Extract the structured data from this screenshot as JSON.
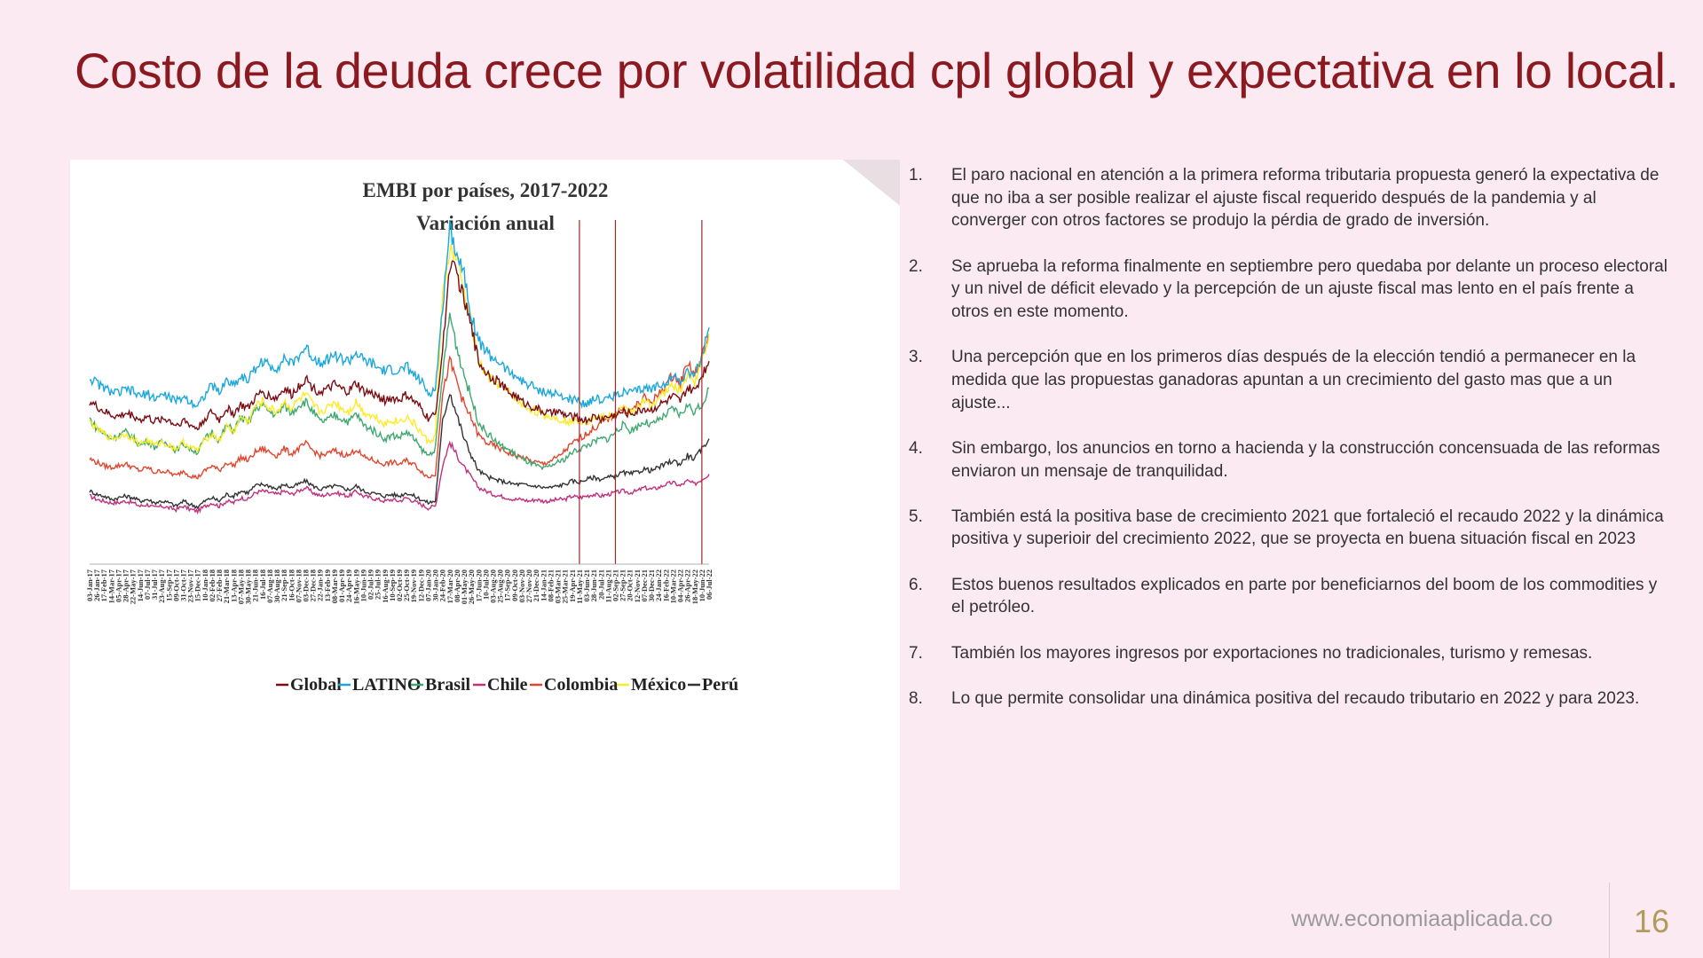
{
  "slide": {
    "title": "Costo de la deuda crece por volatilidad cpl global y expectativa en lo local.",
    "footer_url": "www.economiaaplicada.co",
    "page_number": "16"
  },
  "bullets": [
    {
      "num": "1.",
      "text": "El paro nacional en atención a la primera reforma tributaria propuesta generó la expectativa de que no iba a ser posible realizar el ajuste fiscal requerido después de la pandemia y al converger con otros factores se produjo la pérdia de grado de inversión."
    },
    {
      "num": "2.",
      "text": "Se aprueba la reforma finalmente en septiembre pero quedaba por delante un proceso electoral y un nivel de déficit elevado y la percepción de un ajuste fiscal mas lento en el país frente a otros en este momento."
    },
    {
      "num": "3.",
      "text": "Una percepción que en los primeros días después de la elección tendió a permanecer en la medida que las propuestas ganadoras apuntan a un crecimiento del gasto mas que a un ajuste..."
    },
    {
      "num": "4.",
      "text": "Sin embargo, los anuncios en torno a hacienda y la construcción concensuada  de las reformas enviaron un mensaje de tranquilidad."
    },
    {
      "num": "5.",
      "text": "También  está la positiva base de crecimiento 2021 que fortaleció el recaudo 2022 y la dinámica positiva y superioir del crecimiento 2022, que se proyecta en buena situación fiscal en 2023"
    },
    {
      "num": "6.",
      "text": "Estos buenos resultados explicados en parte por beneficiarnos del boom de los commodities y el petróleo."
    },
    {
      "num": "7.",
      "text": "También los mayores ingresos por exportaciones no tradicionales, turismo y remesas."
    },
    {
      "num": "8.",
      "text": "Lo que permite consolidar una dinámica positiva del recaudo tributario en 2022 y para 2023."
    }
  ],
  "chart_data": {
    "type": "line",
    "title": "EMBI por países, 2017-2022",
    "subtitle": "Variación anual",
    "x": [
      "03-Jan-17",
      "26-Jan-17",
      "17-Feb-17",
      "14-Mar-17",
      "05-Apr-17",
      "28-Apr-17",
      "22-May-17",
      "14-Jun-17",
      "07-Jul-17",
      "31-Jul-17",
      "23-Aug-17",
      "15-Sep-17",
      "09-Oct-17",
      "31-Oct-17",
      "23-Nov-17",
      "15-Dec-17",
      "10-Jan-18",
      "02-Feb-18",
      "27-Feb-18",
      "21-Mar-18",
      "13-Apr-18",
      "07-May-18",
      "30-May-18",
      "21-Jun-18",
      "16-Jul-18",
      "07-Aug-18",
      "30-Aug-18",
      "21-Sep-18",
      "16-Oct-18",
      "07-Nov-18",
      "03-Dec-18",
      "27-Dec-18",
      "22-Jan-19",
      "13-Feb-19",
      "08-Mar-19",
      "01-Apr-19",
      "24-Apr-19",
      "16-May-19",
      "10-Jun-19",
      "02-Jul-19",
      "25-Jul-19",
      "16-Aug-19",
      "10-Sep-19",
      "02-Oct-19",
      "25-Oct-19",
      "19-Nov-19",
      "12-Dec-19",
      "07-Jan-20",
      "30-Jan-20",
      "24-Feb-20",
      "17-Mar-20",
      "08-Apr-20",
      "01-May-20",
      "26-May-20",
      "17-Jun-20",
      "10-Jul-20",
      "03-Aug-20",
      "25-Aug-20",
      "17-Sep-20",
      "09-Oct-20",
      "03-Nov-20",
      "27-Nov-20",
      "21-Dec-20",
      "14-Jan-21",
      "08-Feb-21",
      "03-Mar-21",
      "25-Mar-21",
      "19-Apr-21",
      "11-May-21",
      "03-Jun-21",
      "28-Jun-21",
      "20-Jul-21",
      "11-Aug-21",
      "02-Sep-21",
      "27-Sep-21",
      "20-Oct-21",
      "12-Nov-21",
      "07-Dec-21",
      "30-Dec-21",
      "24-Jan-22",
      "16-Feb-22",
      "10-Mar-22",
      "04-Apr-22",
      "26-Apr-22",
      "18-May-22",
      "10-Jun-22",
      "06-Jul-22"
    ],
    "series": [
      {
        "name": "Global",
        "color": "#7a0c12",
        "values": [
          440,
          425,
          410,
          400,
          395,
          405,
          400,
          385,
          395,
          380,
          390,
          385,
          370,
          385,
          370,
          360,
          390,
          410,
          385,
          420,
          405,
          430,
          420,
          450,
          470,
          455,
          450,
          480,
          460,
          485,
          510,
          480,
          470,
          475,
          490,
          475,
          470,
          495,
          470,
          465,
          455,
          445,
          450,
          445,
          460,
          440,
          420,
          390,
          400,
          590,
          850,
          820,
          740,
          660,
          560,
          530,
          510,
          495,
          470,
          460,
          440,
          430,
          420,
          410,
          405,
          410,
          400,
          395,
          390,
          385,
          395,
          390,
          395,
          400,
          410,
          405,
          410,
          420,
          415,
          430,
          440,
          455,
          440,
          480,
          470,
          520,
          560
        ]
      },
      {
        "name": "LATINO",
        "color": "#19a7dc",
        "values": [
          510,
          495,
          480,
          470,
          465,
          475,
          470,
          455,
          465,
          450,
          460,
          455,
          440,
          455,
          440,
          430,
          460,
          490,
          465,
          505,
          490,
          515,
          505,
          540,
          560,
          545,
          540,
          570,
          550,
          575,
          600,
          570,
          560,
          565,
          580,
          565,
          560,
          585,
          560,
          555,
          540,
          530,
          535,
          530,
          545,
          520,
          500,
          465,
          475,
          720,
          960,
          880,
          820,
          700,
          620,
          590,
          570,
          555,
          530,
          520,
          500,
          490,
          480,
          470,
          465,
          460,
          450,
          445,
          440,
          435,
          450,
          445,
          450,
          460,
          470,
          465,
          470,
          480,
          475,
          490,
          500,
          515,
          500,
          530,
          520,
          570,
          660
        ]
      },
      {
        "name": "Brasil",
        "color": "#3ea870",
        "values": [
          390,
          360,
          345,
          330,
          340,
          350,
          335,
          310,
          325,
          305,
          320,
          315,
          295,
          315,
          300,
          290,
          330,
          350,
          325,
          370,
          355,
          395,
          375,
          420,
          430,
          410,
          400,
          430,
          405,
          430,
          440,
          410,
          380,
          385,
          400,
          390,
          380,
          405,
          370,
          360,
          345,
          330,
          340,
          335,
          350,
          330,
          300,
          280,
          300,
          520,
          700,
          600,
          520,
          450,
          380,
          350,
          330,
          310,
          300,
          285,
          270,
          260,
          250,
          240,
          250,
          260,
          270,
          290,
          300,
          310,
          320,
          330,
          330,
          350,
          370,
          355,
          365,
          380,
          370,
          385,
          400,
          420,
          400,
          430,
          410,
          430,
          480
        ]
      },
      {
        "name": "Chile",
        "color": "#c2307d",
        "values": [
          160,
          150,
          145,
          140,
          140,
          145,
          140,
          130,
          135,
          125,
          130,
          125,
          120,
          130,
          120,
          115,
          130,
          140,
          130,
          145,
          140,
          155,
          150,
          170,
          175,
          170,
          165,
          175,
          165,
          175,
          185,
          170,
          160,
          165,
          170,
          165,
          160,
          175,
          160,
          155,
          150,
          145,
          150,
          145,
          155,
          145,
          135,
          125,
          130,
          250,
          320,
          280,
          245,
          215,
          185,
          175,
          165,
          160,
          155,
          150,
          150,
          145,
          150,
          145,
          145,
          150,
          150,
          160,
          155,
          160,
          165,
          160,
          165,
          170,
          175,
          170,
          175,
          185,
          180,
          185,
          195,
          200,
          190,
          205,
          195,
          210,
          225
        ]
      },
      {
        "name": "Colombia",
        "color": "#e0462e",
        "values": [
          270,
          260,
          250,
          245,
          250,
          255,
          245,
          235,
          245,
          230,
          235,
          230,
          220,
          235,
          220,
          215,
          235,
          250,
          235,
          260,
          250,
          275,
          265,
          290,
          300,
          290,
          280,
          300,
          285,
          300,
          315,
          295,
          280,
          285,
          295,
          285,
          280,
          300,
          275,
          270,
          260,
          255,
          260,
          255,
          265,
          255,
          235,
          215,
          225,
          460,
          560,
          500,
          430,
          390,
          340,
          320,
          310,
          300,
          290,
          280,
          275,
          265,
          260,
          255,
          265,
          275,
          295,
          315,
          330,
          345,
          360,
          375,
          390,
          405,
          420,
          410,
          430,
          450,
          440,
          460,
          490,
          520,
          490,
          560,
          520,
          570,
          640
        ]
      },
      {
        "name": "México",
        "color": "#fdeb2a",
        "values": [
          380,
          360,
          345,
          330,
          335,
          345,
          330,
          315,
          325,
          310,
          320,
          310,
          300,
          320,
          305,
          295,
          325,
          345,
          325,
          365,
          350,
          395,
          380,
          425,
          440,
          420,
          410,
          440,
          420,
          445,
          460,
          430,
          410,
          420,
          440,
          420,
          410,
          440,
          410,
          400,
          390,
          375,
          385,
          380,
          395,
          375,
          350,
          320,
          335,
          750,
          890,
          860,
          760,
          670,
          560,
          520,
          500,
          490,
          470,
          455,
          430,
          420,
          410,
          400,
          395,
          390,
          385,
          380,
          385,
          380,
          395,
          390,
          395,
          405,
          420,
          410,
          420,
          440,
          430,
          450,
          470,
          490,
          470,
          520,
          500,
          560,
          640
        ]
      },
      {
        "name": "Perú",
        "color": "#333333",
        "values": [
          175,
          165,
          160,
          150,
          155,
          160,
          155,
          145,
          150,
          140,
          145,
          140,
          130,
          145,
          135,
          128,
          145,
          155,
          145,
          165,
          160,
          175,
          170,
          190,
          195,
          190,
          180,
          195,
          185,
          195,
          205,
          190,
          180,
          185,
          190,
          185,
          178,
          190,
          175,
          170,
          165,
          160,
          165,
          160,
          170,
          160,
          150,
          140,
          145,
          380,
          470,
          400,
          330,
          280,
          235,
          220,
          210,
          205,
          200,
          195,
          195,
          190,
          190,
          185,
          185,
          190,
          195,
          205,
          200,
          210,
          215,
          210,
          215,
          220,
          230,
          225,
          230,
          240,
          235,
          245,
          255,
          265,
          255,
          280,
          270,
          300,
          330
        ]
      }
    ],
    "marker_dates": [
      "11-May-21",
      "02-Sep-21",
      "10-Jun-22"
    ],
    "y_axis_visible": false,
    "legend_position": "bottom"
  }
}
